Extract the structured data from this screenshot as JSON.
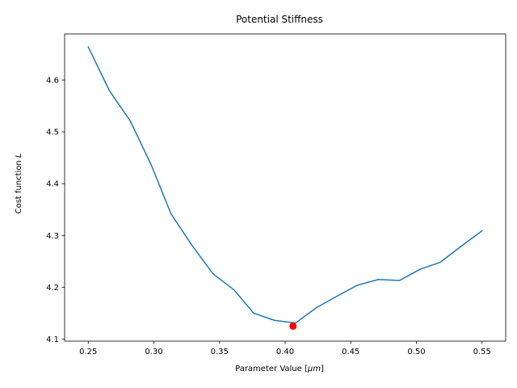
{
  "chart_data": {
    "type": "line",
    "title": "Potential Stiffness",
    "xlabel_parts": [
      "Parameter Value [",
      "μm",
      "]"
    ],
    "ylabel_parts": [
      "Cost function ",
      "L"
    ],
    "xlim": [
      0.232,
      0.568
    ],
    "ylim": [
      4.096,
      4.689
    ],
    "xticks": [
      0.25,
      0.3,
      0.35,
      0.4,
      0.45,
      0.5,
      0.55
    ],
    "xtick_labels": [
      "0.25",
      "0.30",
      "0.35",
      "0.40",
      "0.45",
      "0.50",
      "0.55"
    ],
    "yticks": [
      4.1,
      4.2,
      4.3,
      4.4,
      4.5,
      4.6
    ],
    "ytick_labels": [
      "4.1",
      "4.2",
      "4.3",
      "4.4",
      "4.5",
      "4.6"
    ],
    "grid": false,
    "series": [
      {
        "color": "#1f77b4",
        "x": [
          0.25,
          0.266,
          0.282,
          0.298,
          0.313,
          0.329,
          0.345,
          0.361,
          0.376,
          0.392,
          0.408,
          0.424,
          0.439,
          0.455,
          0.471,
          0.487,
          0.503,
          0.518,
          0.534,
          0.55
        ],
        "y": [
          4.664,
          4.58,
          4.521,
          4.436,
          4.342,
          4.281,
          4.226,
          4.195,
          4.15,
          4.136,
          4.131,
          4.161,
          4.182,
          4.204,
          4.215,
          4.213,
          4.235,
          4.248,
          4.279,
          4.309
        ]
      }
    ],
    "marker": {
      "x": 0.406,
      "y": 4.125,
      "color": "#ff0000"
    }
  }
}
